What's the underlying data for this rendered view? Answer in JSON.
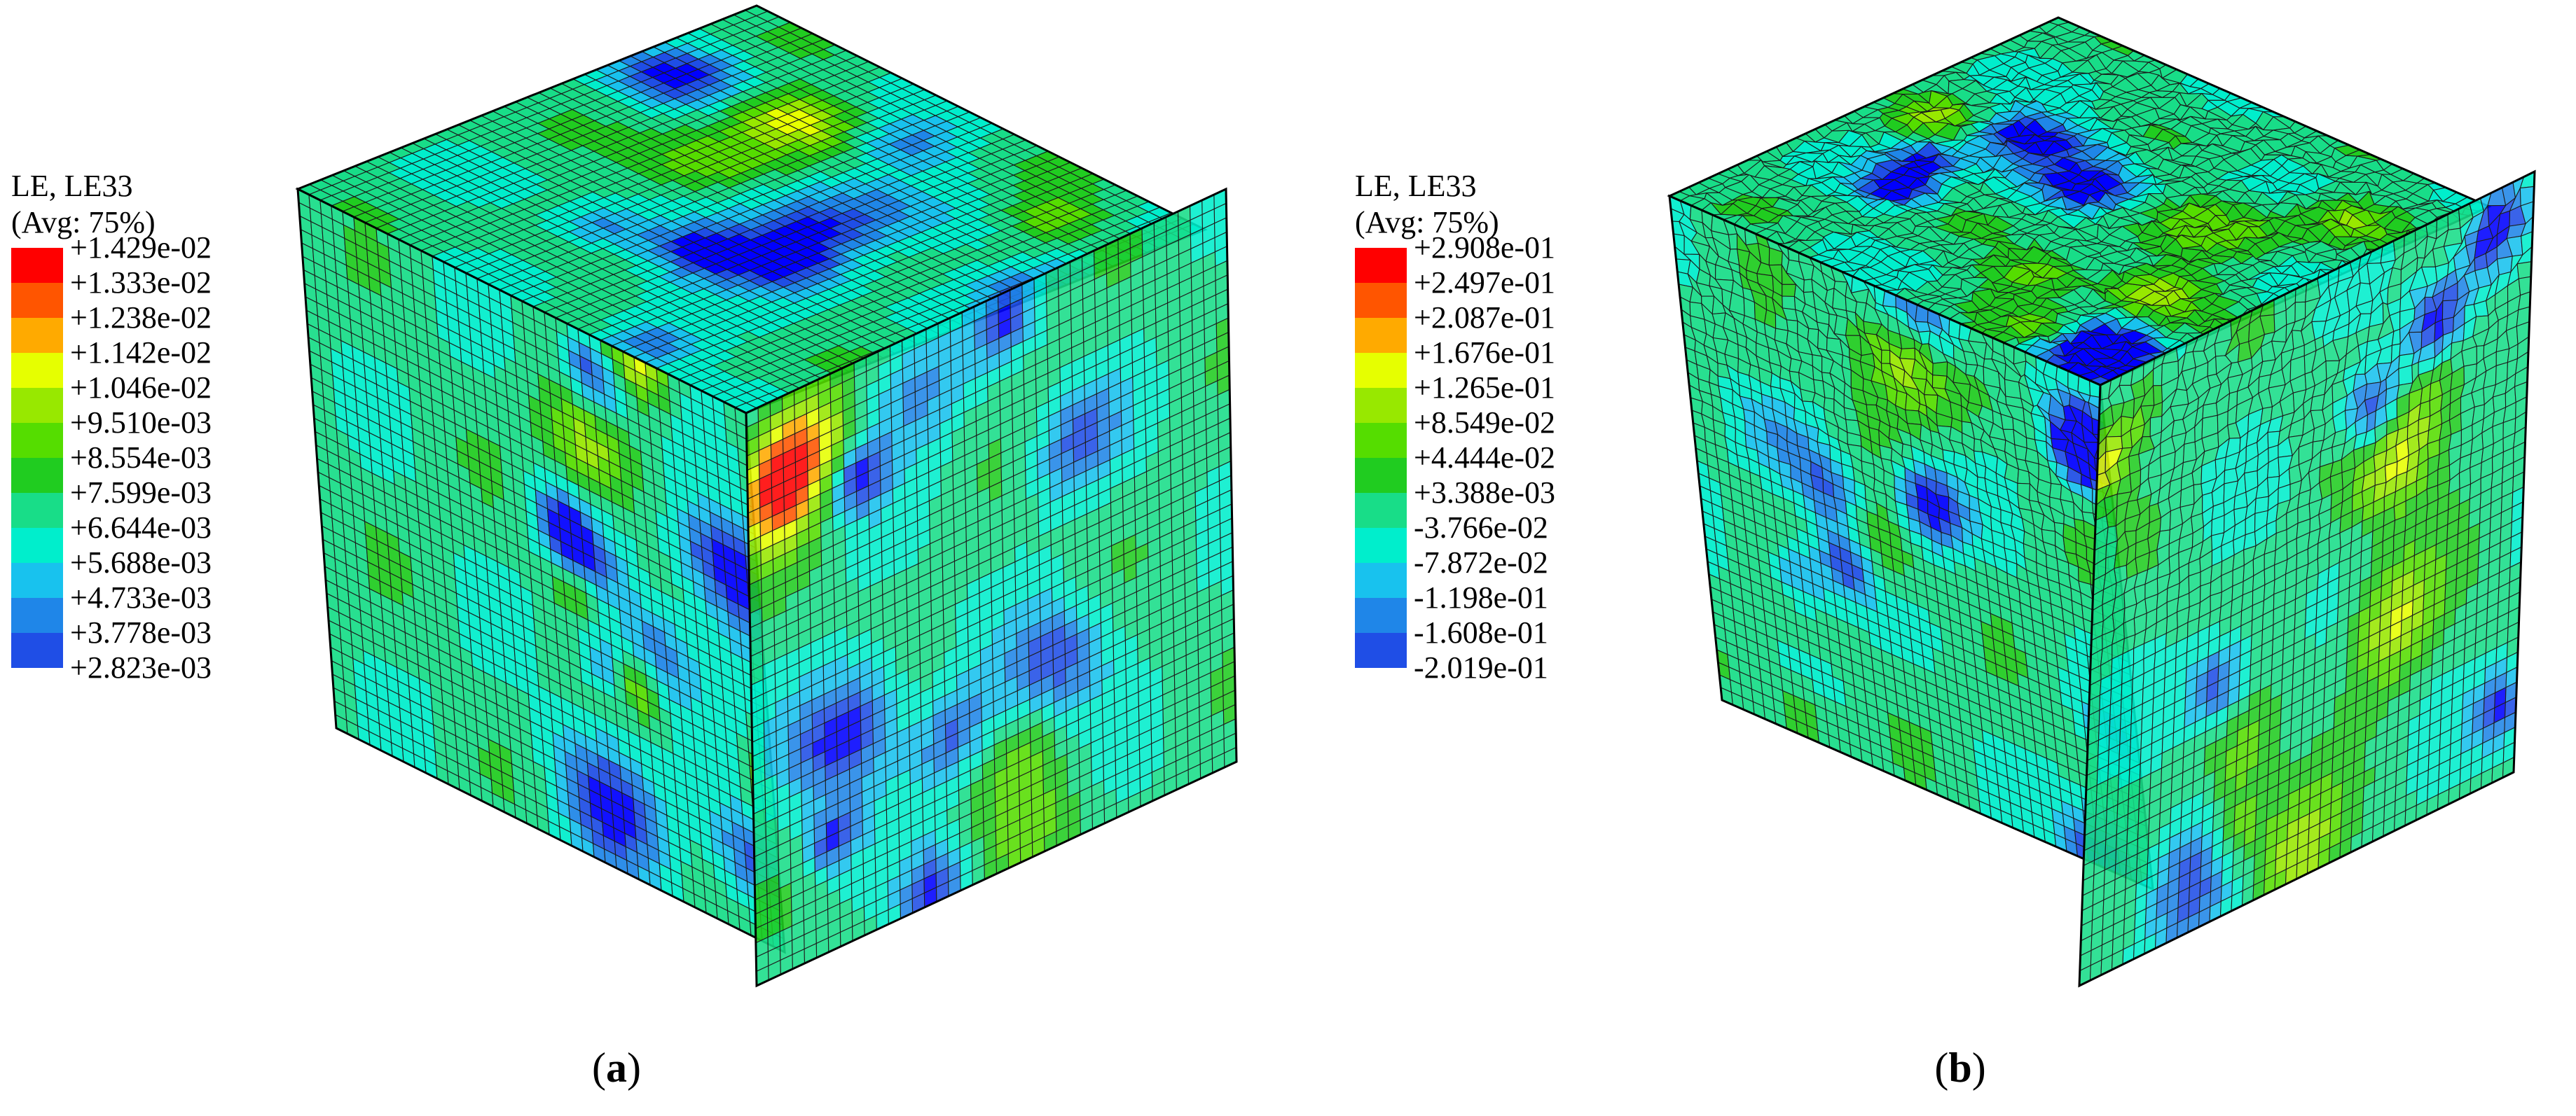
{
  "palette": [
    "#ff0000",
    "#ff5500",
    "#ffaa00",
    "#e6ff00",
    "#98e800",
    "#55dd00",
    "#20cc20",
    "#18dd88",
    "#00eecc",
    "#18c2ee",
    "#1f86e8",
    "#1f4ee6",
    "#0000ff"
  ],
  "panels": [
    {
      "caption_open": "(",
      "caption_letter": "a",
      "caption_close": ")",
      "legend": {
        "title": "LE, LE33",
        "subtitle": "(Avg: 75%)",
        "values": [
          "+1.429e-02",
          "+1.333e-02",
          "+1.238e-02",
          "+1.142e-02",
          "+1.046e-02",
          "+9.510e-03",
          "+8.554e-03",
          "+7.599e-03",
          "+6.644e-03",
          "+5.688e-03",
          "+4.733e-03",
          "+3.778e-03",
          "+2.823e-03"
        ]
      }
    },
    {
      "caption_open": "(",
      "caption_letter": "b",
      "caption_close": ")",
      "legend": {
        "title": "LE, LE33",
        "subtitle": "(Avg: 75%)",
        "values": [
          "+2.908e-01",
          "+2.497e-01",
          "+2.087e-01",
          "+1.676e-01",
          "+1.265e-01",
          "+8.549e-02",
          "+4.444e-02",
          "+3.388e-03",
          "-3.766e-02",
          "-7.872e-02",
          "-1.198e-01",
          "-1.608e-01",
          "-2.019e-01"
        ]
      }
    }
  ]
}
